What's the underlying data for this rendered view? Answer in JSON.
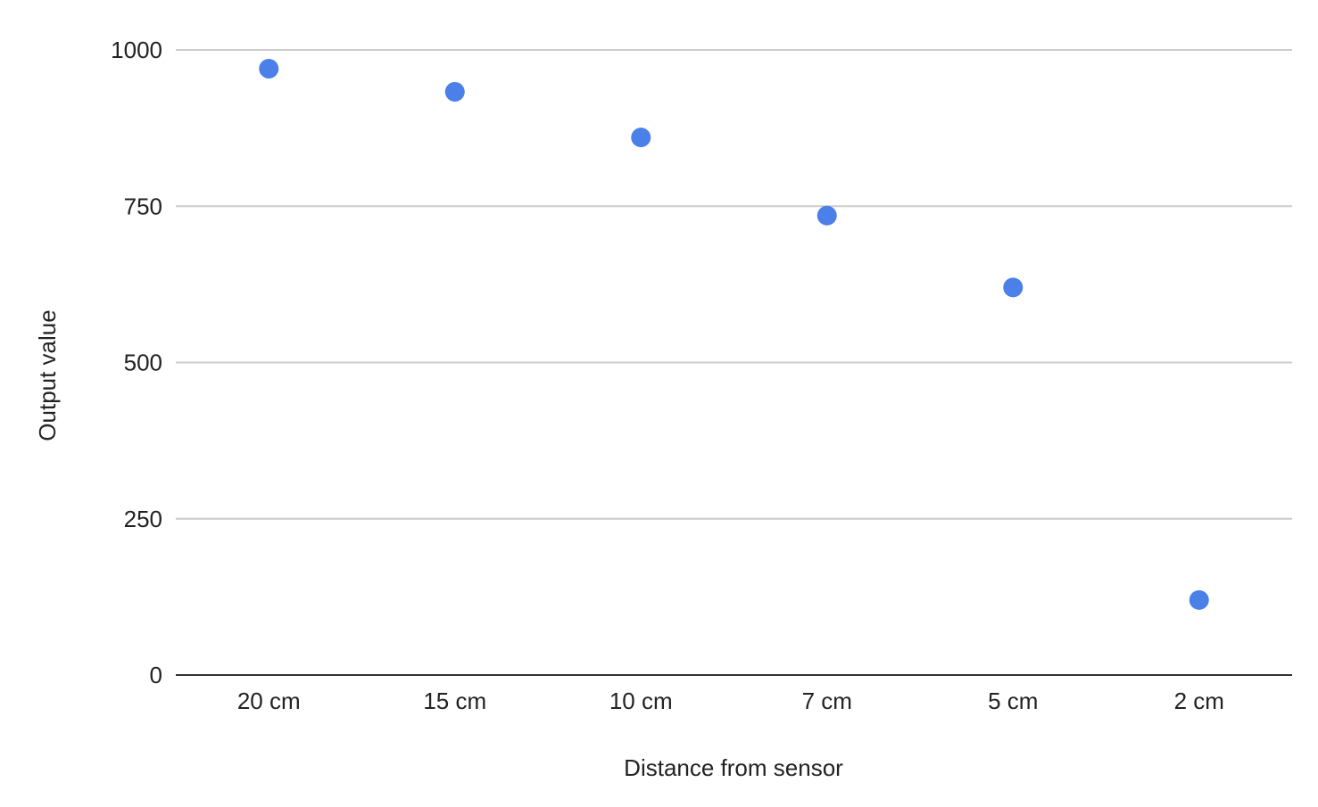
{
  "chart_data": {
    "type": "scatter",
    "title": "",
    "xlabel": "Distance from sensor",
    "ylabel": "Output value",
    "categories": [
      "20 cm",
      "15 cm",
      "10 cm",
      "7 cm",
      "5 cm",
      "2 cm"
    ],
    "series": [
      {
        "values": [
          970,
          933,
          860,
          735,
          620,
          120
        ],
        "color": "#4a80e8"
      }
    ],
    "ylim": [
      0,
      1000
    ],
    "yticks": [
      0,
      250,
      500,
      750,
      1000
    ],
    "ytick_labels": [
      "0",
      "250",
      "500",
      "750",
      "1000"
    ],
    "grid": true,
    "legend": "none",
    "gridline_color": "#cccccc",
    "baseline_color": "#333333"
  }
}
